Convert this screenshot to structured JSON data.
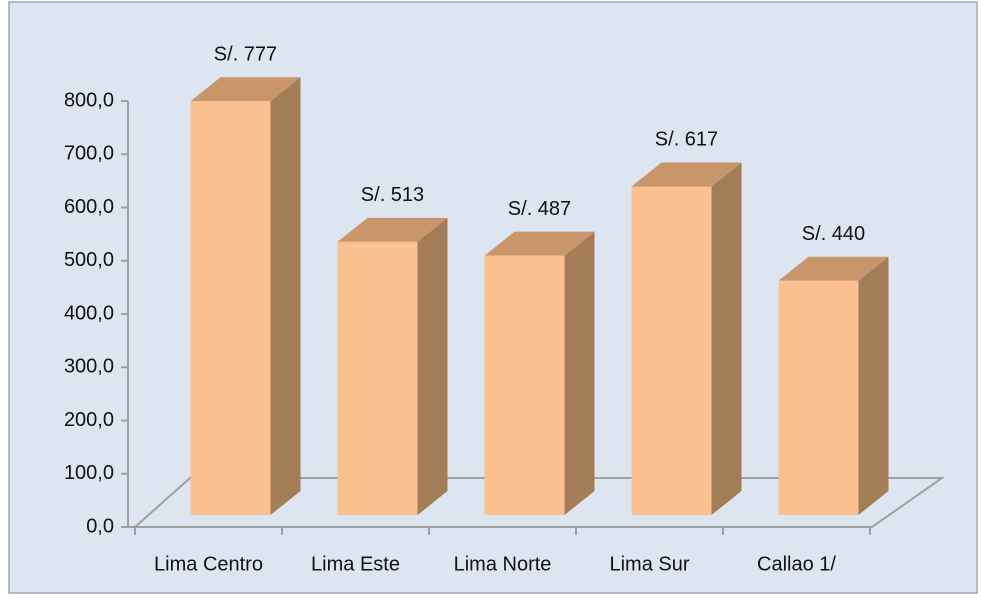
{
  "chart_data": {
    "type": "bar3d",
    "categories": [
      "Lima Centro",
      "Lima Este",
      "Lima Norte",
      "Lima Sur",
      "Callao 1/"
    ],
    "values": [
      777,
      513,
      487,
      617,
      440
    ],
    "value_labels": [
      "S/. 777",
      "S/. 513",
      "S/. 487",
      "S/. 617",
      "S/. 440"
    ],
    "color": "#fac08f",
    "ylim": [
      0,
      800
    ],
    "yticks": [
      {
        "value": 0,
        "label": "0,0"
      },
      {
        "value": 100,
        "label": "100,0"
      },
      {
        "value": 200,
        "label": "200,0"
      },
      {
        "value": 300,
        "label": "300,0"
      },
      {
        "value": 400,
        "label": "400,0"
      },
      {
        "value": 500,
        "label": "500,0"
      },
      {
        "value": 600,
        "label": "600,0"
      },
      {
        "value": 700,
        "label": "700,0"
      },
      {
        "value": 800,
        "label": "800,0"
      }
    ],
    "grid": false
  }
}
